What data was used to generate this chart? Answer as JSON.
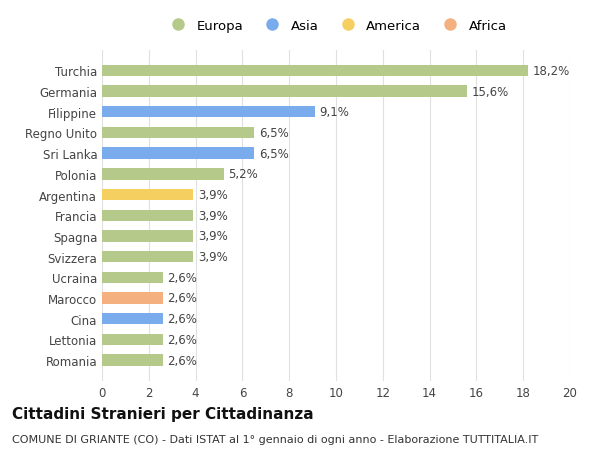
{
  "countries": [
    "Romania",
    "Lettonia",
    "Cina",
    "Marocco",
    "Ucraina",
    "Svizzera",
    "Spagna",
    "Francia",
    "Argentina",
    "Polonia",
    "Sri Lanka",
    "Regno Unito",
    "Filippine",
    "Germania",
    "Turchia"
  ],
  "values": [
    2.6,
    2.6,
    2.6,
    2.6,
    2.6,
    3.9,
    3.9,
    3.9,
    3.9,
    5.2,
    6.5,
    6.5,
    9.1,
    15.6,
    18.2
  ],
  "labels": [
    "2,6%",
    "2,6%",
    "2,6%",
    "2,6%",
    "2,6%",
    "3,9%",
    "3,9%",
    "3,9%",
    "3,9%",
    "5,2%",
    "6,5%",
    "6,5%",
    "9,1%",
    "15,6%",
    "18,2%"
  ],
  "continents": [
    "Europa",
    "Europa",
    "Asia",
    "Africa",
    "Europa",
    "Europa",
    "Europa",
    "Europa",
    "America",
    "Europa",
    "Asia",
    "Europa",
    "Asia",
    "Europa",
    "Europa"
  ],
  "colors": {
    "Europa": "#b5c98a",
    "Asia": "#7aaced",
    "America": "#f5d060",
    "Africa": "#f5b080"
  },
  "xlim": [
    0,
    20
  ],
  "xticks": [
    0,
    2,
    4,
    6,
    8,
    10,
    12,
    14,
    16,
    18,
    20
  ],
  "title": "Cittadini Stranieri per Cittadinanza",
  "subtitle": "COMUNE DI GRIANTE (CO) - Dati ISTAT al 1° gennaio di ogni anno - Elaborazione TUTTITALIA.IT",
  "bg_color": "#ffffff",
  "grid_color": "#e0e0e0",
  "bar_height": 0.55,
  "label_fontsize": 8.5,
  "tick_fontsize": 8.5,
  "title_fontsize": 11,
  "subtitle_fontsize": 8
}
